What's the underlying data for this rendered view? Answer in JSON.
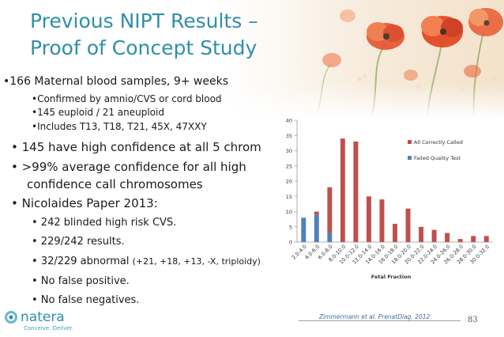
{
  "slide": {
    "title_line1": "Previous NIPT Results –",
    "title_line2": "Proof of Concept Study",
    "bullets": {
      "b1": "•166 Maternal blood samples, 9+ weeks",
      "b1a": "•Confirmed by amnio/CVS or cord blood",
      "b1b": "•145 euploid / 21 aneuploid",
      "b1c": "•Includes T13, T18, T21, 45X, 47XXY",
      "b2": "•  145 have high confidence at all 5 chrom",
      "b3_line1": "•  >99% average confidence for all high",
      "b3_line2": "confidence call chromosomes",
      "b4": "•  Nicolaides Paper 2013:",
      "b4a": "•  242 blinded high risk CVS.",
      "b4b": "•  229/242 results.",
      "b4c_main": "•  32/229 abnormal ",
      "b4c_paren": "(+21, +18, +13, -X, triploidy)",
      "b4d": "•  No false positive.",
      "b4e": "•  No false negatives."
    },
    "citation": "Zimmermann et al. PrenatDiag. 2012",
    "slide_number": "83",
    "logo": {
      "name": "natera",
      "tagline": "Conceive. Deliver."
    }
  },
  "colors": {
    "title": "#2f8fa8",
    "series_called": "#c0504d",
    "series_failed": "#4f81bd"
  },
  "chart_data": {
    "type": "bar",
    "stacked": true,
    "xlabel": "Fetal Fraction",
    "ylabel": "",
    "ylim": [
      0,
      40
    ],
    "yticks": [
      0,
      5,
      10,
      15,
      20,
      25,
      30,
      35,
      40
    ],
    "grid": false,
    "legend_position": "top-right",
    "categories": [
      "2.0-4.0",
      "4.0-6.0",
      "6.0-8.0",
      "8.0-10.0",
      "10.0-12.0",
      "12.0-14.0",
      "14.0-16.0",
      "16.0-18.0",
      "18.0-20.0",
      "20.0-22.0",
      "22.0-24.0",
      "24.0-26.0",
      "26.0-28.0",
      "28.0-30.0",
      "30.0-32.0"
    ],
    "series": [
      {
        "name": "Failed Quality Test",
        "values": [
          8,
          9,
          3,
          0,
          0,
          0,
          0,
          0,
          0,
          0,
          0,
          0,
          0,
          0,
          0
        ]
      },
      {
        "name": "All Correctly Called",
        "values": [
          0,
          1,
          15,
          34,
          33,
          15,
          14,
          6,
          11,
          5,
          4,
          3,
          1,
          2,
          2
        ]
      }
    ]
  }
}
